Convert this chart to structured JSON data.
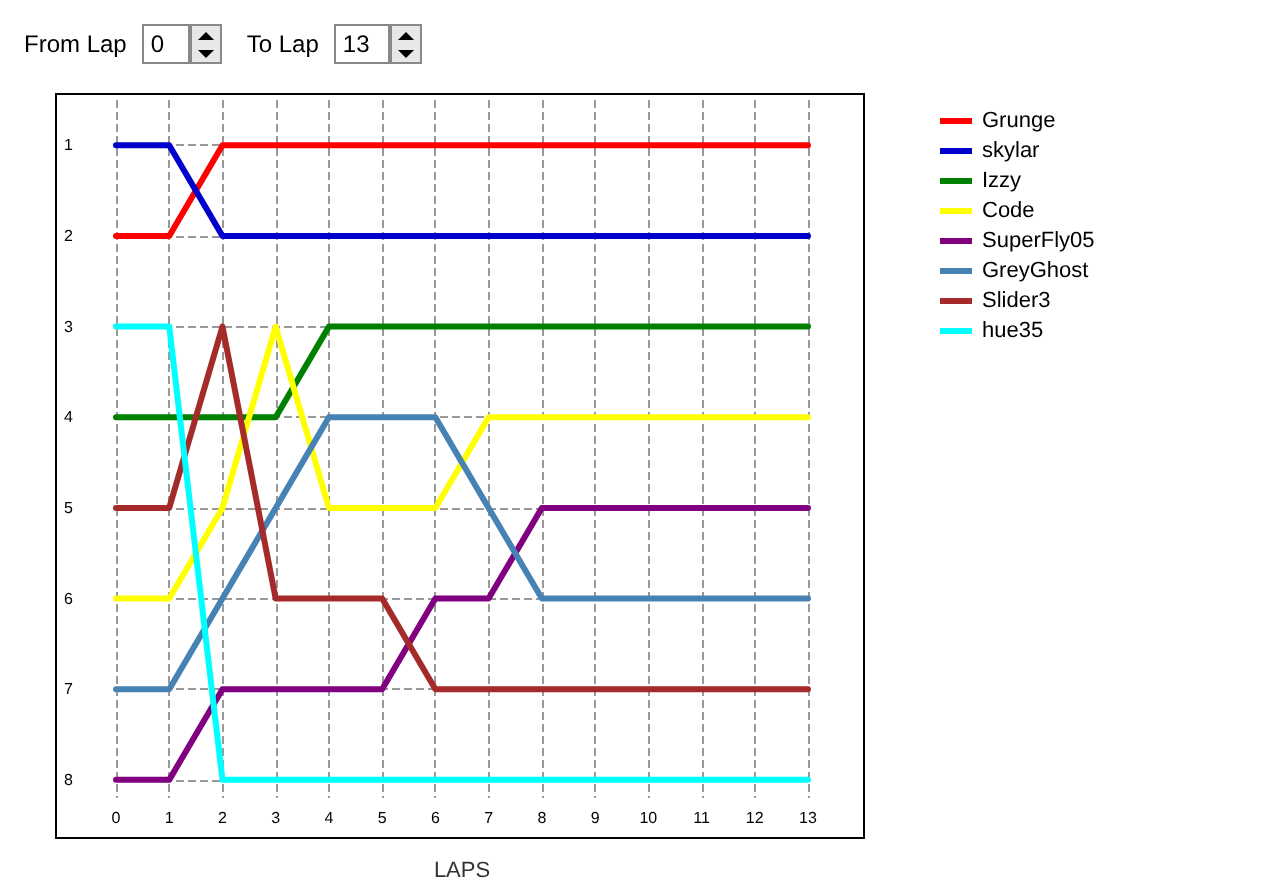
{
  "chart_data": {
    "type": "line",
    "xlabel": "LAPS",
    "annotations": [
      "From Lap",
      "0",
      "To Lap",
      "13"
    ],
    "x": [
      0,
      1,
      2,
      3,
      4,
      5,
      6,
      7,
      8,
      9,
      10,
      11,
      12,
      13
    ],
    "series": [
      {
        "name": "Grunge",
        "color": "#ff0000",
        "values": [
          2,
          2,
          1,
          1,
          1,
          1,
          1,
          1,
          1,
          1,
          1,
          1,
          1,
          1
        ]
      },
      {
        "name": "skylar",
        "color": "#0000cc",
        "values": [
          1,
          1,
          2,
          2,
          2,
          2,
          2,
          2,
          2,
          2,
          2,
          2,
          2,
          2
        ]
      },
      {
        "name": "Izzy",
        "color": "#008000",
        "values": [
          4,
          4,
          4,
          4,
          3,
          3,
          3,
          3,
          3,
          3,
          3,
          3,
          3,
          3
        ]
      },
      {
        "name": "Code",
        "color": "#ffff00",
        "values": [
          6,
          6,
          5,
          3,
          5,
          5,
          5,
          4,
          4,
          4,
          4,
          4,
          4,
          4
        ]
      },
      {
        "name": "SuperFly05",
        "color": "#800080",
        "values": [
          8,
          8,
          7,
          7,
          7,
          7,
          6,
          6,
          5,
          5,
          5,
          5,
          5,
          5
        ]
      },
      {
        "name": "GreyGhost",
        "color": "#4682b4",
        "values": [
          7,
          7,
          6,
          5,
          4,
          4,
          4,
          5,
          6,
          6,
          6,
          6,
          6,
          6
        ]
      },
      {
        "name": "Slider3",
        "color": "#a52a2a",
        "values": [
          5,
          5,
          3,
          6,
          6,
          6,
          7,
          7,
          7,
          7,
          7,
          7,
          7,
          7
        ]
      },
      {
        "name": "hue35",
        "color": "#00ffff",
        "values": [
          3,
          3,
          8,
          8,
          8,
          8,
          8,
          8,
          8,
          8,
          8,
          8,
          8,
          8
        ]
      }
    ],
    "xlim": [
      0,
      13
    ],
    "xticks": [
      0,
      1,
      2,
      3,
      4,
      5,
      6,
      7,
      8,
      9,
      10,
      11,
      12,
      13
    ],
    "ylim": [
      8.2,
      0.5
    ],
    "yticks": [
      1,
      2,
      3,
      4,
      5,
      6,
      7,
      8
    ],
    "grid": true,
    "legend": "right",
    "marker": "none",
    "line_style": "solid"
  }
}
